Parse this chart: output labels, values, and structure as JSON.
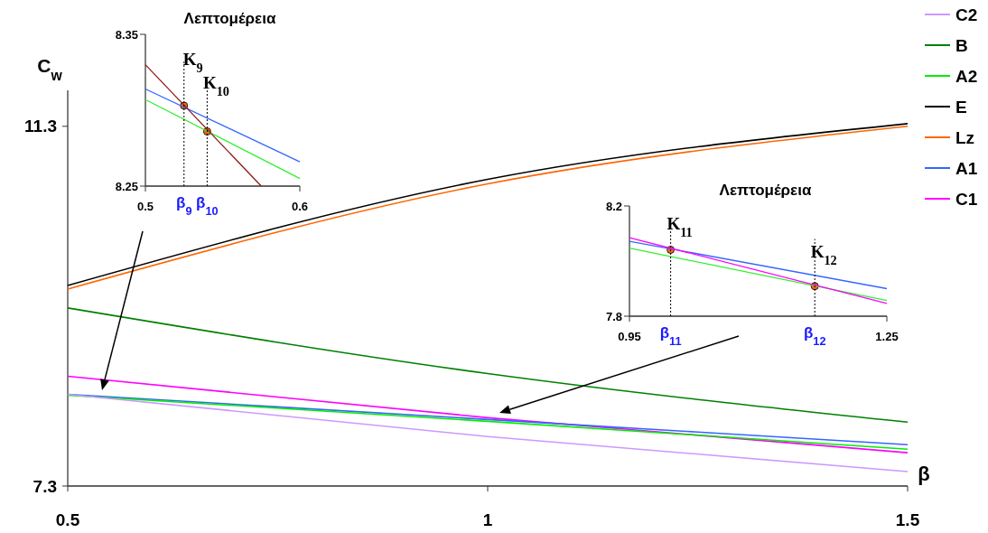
{
  "chart_data": [
    {
      "type": "line",
      "xlabel": "β",
      "ylabel": "C$_{w}$",
      "xlim": [
        0.5,
        1.5
      ],
      "ylim": [
        7.3,
        11.7
      ],
      "xticks": [
        0.5,
        1,
        1.5
      ],
      "yticks": [
        7.3,
        11.3
      ],
      "legend": "right",
      "grid": false,
      "series": [
        {
          "name": "C2",
          "color": "#cc99ff",
          "x": [
            0.5,
            1,
            1.5
          ],
          "values": [
            8.32,
            7.85,
            7.46
          ]
        },
        {
          "name": "B",
          "color": "#008000",
          "x": [
            0.5,
            1,
            1.5
          ],
          "values": [
            9.28,
            8.55,
            8.01
          ]
        },
        {
          "name": "A2",
          "color": "#00ee00",
          "x": [
            0.5,
            1,
            1.5
          ],
          "values": [
            8.31,
            8.02,
            7.71
          ]
        },
        {
          "name": "E",
          "color": "#000000",
          "x": [
            0.5,
            1,
            1.5
          ],
          "values": [
            9.53,
            10.71,
            11.33
          ]
        },
        {
          "name": "Lz",
          "color": "#ff6600",
          "x": [
            0.5,
            1,
            1.5
          ],
          "values": [
            9.49,
            10.66,
            11.3
          ]
        },
        {
          "name": "A1",
          "color": "#3366ff",
          "x": [
            0.5,
            1,
            1.5
          ],
          "values": [
            8.32,
            8.04,
            7.76
          ]
        },
        {
          "name": "C1",
          "color": "#ff00ff",
          "x": [
            0.5,
            1,
            1.5
          ],
          "values": [
            8.52,
            8.06,
            7.67
          ]
        }
      ]
    },
    {
      "type": "line",
      "title": "Λεπτομέρεια",
      "xlim": [
        0.5,
        0.6
      ],
      "ylim": [
        8.25,
        8.35
      ],
      "xticks": [
        0.5,
        0.6
      ],
      "yticks": [
        8.25,
        8.35
      ],
      "series": [
        {
          "color": "#8b1a1a",
          "x": [
            0.5,
            0.575
          ],
          "values": [
            8.33,
            8.25
          ]
        },
        {
          "color": "#3366ff",
          "x": [
            0.5,
            0.6
          ],
          "values": [
            8.314,
            8.266
          ]
        },
        {
          "color": "#33ee33",
          "x": [
            0.5,
            0.6
          ],
          "values": [
            8.307,
            8.255
          ]
        },
        {
          "type": "scatter",
          "color": "#ff6600",
          "x": [
            0.525,
            0.54
          ],
          "values": [
            8.303,
            8.286
          ]
        }
      ],
      "ref_lines": [
        {
          "axis": "x",
          "value": 0.525,
          "label": "β$_{9}$",
          "line_style": "dotted"
        },
        {
          "axis": "x",
          "value": 0.54,
          "label": "β$_{10}$",
          "line_style": "dotted"
        }
      ],
      "annotations": [
        {
          "text": "K$_{9}$",
          "x": 0.525,
          "y": 8.33
        },
        {
          "text": "K$_{10}$",
          "x": 0.54,
          "y": 8.314
        }
      ]
    },
    {
      "type": "line",
      "title": "Λεπτομέρεια",
      "xlim": [
        0.95,
        1.25
      ],
      "ylim": [
        7.8,
        8.2
      ],
      "xticks": [
        0.95,
        1.25
      ],
      "yticks": [
        7.8,
        8.2
      ],
      "series": [
        {
          "color": "#ff00ff",
          "x": [
            0.95,
            1.25
          ],
          "values": [
            8.085,
            7.846
          ]
        },
        {
          "color": "#3366ff",
          "x": [
            0.95,
            1.25
          ],
          "values": [
            8.072,
            7.9
          ]
        },
        {
          "color": "#33ee33",
          "x": [
            0.95,
            1.25
          ],
          "values": [
            8.047,
            7.857
          ]
        },
        {
          "type": "scatter",
          "color": "#ff6600",
          "x": [
            0.998,
            1.166
          ],
          "values": [
            8.041,
            7.909
          ]
        }
      ],
      "ref_lines": [
        {
          "axis": "x",
          "value": 0.998,
          "label": "β$_{11}$",
          "line_style": "dotted"
        },
        {
          "axis": "x",
          "value": 1.166,
          "label": "β$_{12}$",
          "line_style": "dotted"
        }
      ],
      "annotations": [
        {
          "text": "K$_{11}$",
          "x": 0.998,
          "y": 8.115
        },
        {
          "text": "K$_{12}$",
          "x": 1.166,
          "y": 8.012
        }
      ]
    }
  ]
}
